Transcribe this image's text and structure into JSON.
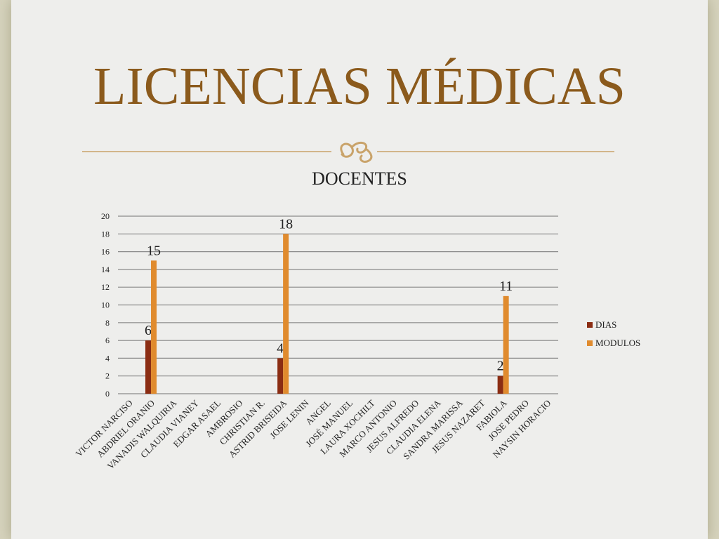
{
  "slide": {
    "title": "LICENCIAS MÉDICAS",
    "ornament": "scroll-flourish-icon"
  },
  "colors": {
    "background": "#eeeeec",
    "frame": "#d6d3bd",
    "title": "#8b5a1c",
    "divider": "#c9a36a",
    "dias": "#8b2d13",
    "modulos": "#e08b2e",
    "grid": "#8a8a8a"
  },
  "chart_data": {
    "type": "bar",
    "title": "DOCENTES",
    "categories": [
      "VICTOR NARCISO",
      "ABDRIEL ORANIO",
      "VANADIS WALQUIRIA",
      "CLAUDIA VIANEY",
      "EDGAR ASAEL",
      "AMBROSIO",
      "CHRISTIAN R.",
      "ASTRID BRISEIDA",
      "JOSE LENIN",
      "ANGEL",
      "JOSÉ MANUEL",
      "LAURA XOCHILT",
      "MARCO ANTONIO",
      "JESUS ALFREDO",
      "CLAUDIA ELENA",
      "SANDRA MARISSA",
      "JESUS NAZARET",
      "FABIOLA",
      "JOSE PEDRO",
      "NAYSIN HORACIO"
    ],
    "series": [
      {
        "name": "DIAS",
        "values": [
          0,
          6,
          0,
          0,
          0,
          0,
          0,
          4,
          0,
          0,
          0,
          0,
          0,
          0,
          0,
          0,
          0,
          2,
          0,
          0
        ]
      },
      {
        "name": "MODULOS",
        "values": [
          0,
          15,
          0,
          0,
          0,
          0,
          0,
          18,
          0,
          0,
          0,
          0,
          0,
          0,
          0,
          0,
          0,
          11,
          0,
          0
        ]
      }
    ],
    "ylim": [
      0,
      20
    ],
    "yticks": [
      "0",
      "2",
      "4",
      "6",
      "8",
      "10",
      "12",
      "14",
      "16",
      "18",
      "20"
    ],
    "grid": true,
    "legend_position": "right"
  }
}
